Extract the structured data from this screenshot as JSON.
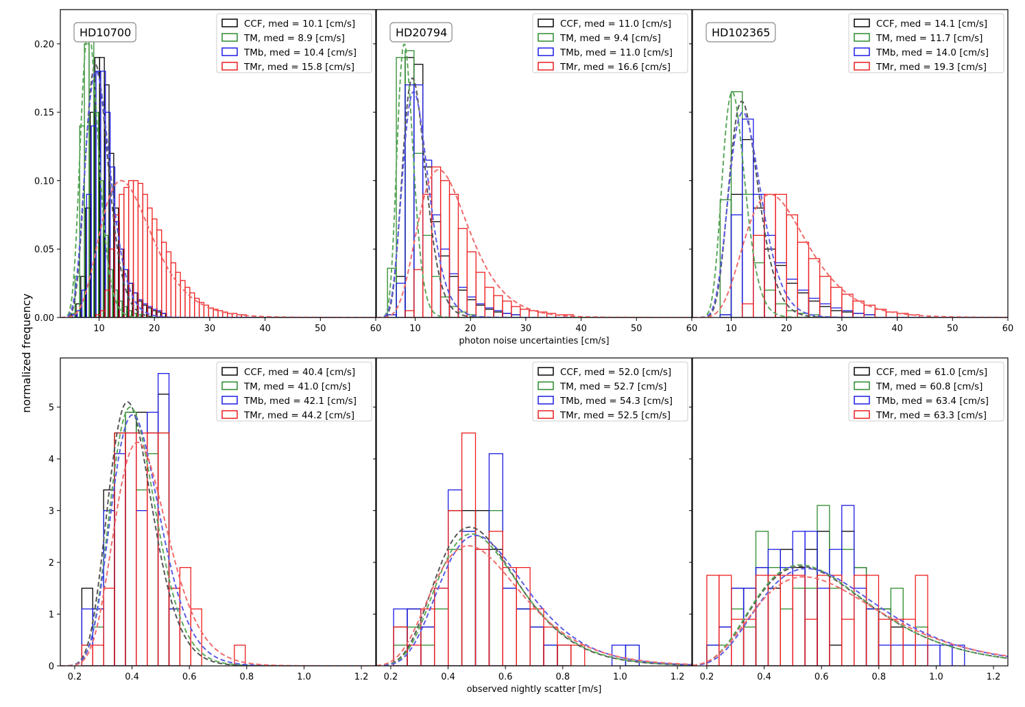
{
  "figure": {
    "ylabel": "normalized frequency"
  },
  "colors": {
    "CCF": "#000000",
    "TM": "#2a8a2a",
    "TMb": "#1a1ae6",
    "TMr": "#ee1c1c",
    "fit_CCF": "#555555",
    "fit_TM": "#5aa85a",
    "fit_TMb": "#5a5ae6",
    "fit_TMr": "#f06a6a"
  },
  "chart_data": [
    {
      "id": "top-left",
      "type": "histogram",
      "row": 0,
      "col": 0,
      "star": "HD10700",
      "xlabel": "",
      "xlim": [
        3,
        60
      ],
      "ylim": [
        0,
        0.225
      ],
      "xticks": [
        10,
        20,
        30,
        40,
        50,
        60
      ],
      "xtick_labels": [
        "10",
        "20",
        "30",
        "40",
        "50",
        "60"
      ],
      "yticks": [
        0,
        0.05,
        0.1,
        0.15,
        0.2
      ],
      "ytick_labels": [
        "0.00",
        "0.05",
        "0.10",
        "0.15",
        "0.20"
      ],
      "legend": [
        "CCF, med = 10.1 [cm/s]",
        "TM, med = 8.9 [cm/s]",
        "TMb, med = 10.4 [cm/s]",
        "TMr, med = 15.8 [cm/s]"
      ],
      "series": [
        {
          "name": "CCF",
          "bin_start": 5.0,
          "bin_width": 0.85,
          "values": [
            0.002,
            0.01,
            0.03,
            0.08,
            0.15,
            0.19,
            0.19,
            0.17,
            0.12,
            0.08,
            0.05,
            0.035,
            0.025,
            0.018,
            0.012,
            0.009,
            0.007,
            0.005,
            0.004,
            0.003
          ]
        },
        {
          "name": "TM",
          "bin_start": 4.8,
          "bin_width": 0.85,
          "values": [
            0.003,
            0.03,
            0.14,
            0.2,
            0.205,
            0.15,
            0.1,
            0.06,
            0.035,
            0.02,
            0.012,
            0.008,
            0.005,
            0.003,
            0.002
          ]
        },
        {
          "name": "TMb",
          "bin_start": 5.2,
          "bin_width": 0.85,
          "values": [
            0.002,
            0.005,
            0.02,
            0.09,
            0.14,
            0.18,
            0.18,
            0.15,
            0.11,
            0.07,
            0.05,
            0.035,
            0.025,
            0.018,
            0.013,
            0.01,
            0.008,
            0.006,
            0.005,
            0.003
          ]
        },
        {
          "name": "TMr",
          "bin_start": 9.4,
          "bin_width": 0.85,
          "values": [
            0.002,
            0.005,
            0.02,
            0.05,
            0.075,
            0.09,
            0.095,
            0.1,
            0.1,
            0.098,
            0.09,
            0.08,
            0.072,
            0.064,
            0.055,
            0.048,
            0.04,
            0.033,
            0.027,
            0.022,
            0.018,
            0.014,
            0.011,
            0.009,
            0.007,
            0.006,
            0.005,
            0.004,
            0.003,
            0.003,
            0.002,
            0.002
          ]
        }
      ],
      "fits": [
        {
          "name": "CCF",
          "type": "lognormal",
          "median": 9.8,
          "sigma": 0.22,
          "peak": 0.185
        },
        {
          "name": "TM",
          "type": "lognormal",
          "median": 8.4,
          "sigma": 0.2,
          "peak": 0.21
        },
        {
          "name": "TMb",
          "type": "lognormal",
          "median": 10.0,
          "sigma": 0.24,
          "peak": 0.18
        },
        {
          "name": "TMr",
          "type": "lognormal",
          "median": 15.6,
          "sigma": 0.33,
          "peak": 0.1
        }
      ]
    },
    {
      "id": "top-middle",
      "type": "histogram",
      "row": 0,
      "col": 1,
      "star": "HD20794",
      "xlabel": "photon noise uncertainties [cm/s]",
      "xlim": [
        3,
        60
      ],
      "ylim": [
        0,
        0.225
      ],
      "xticks": [
        10,
        20,
        30,
        40,
        50,
        60
      ],
      "xtick_labels": [
        "10",
        "20",
        "30",
        "40",
        "50",
        "60"
      ],
      "yticks": [
        0,
        0.05,
        0.1,
        0.15,
        0.2
      ],
      "ytick_labels": [
        "",
        "",
        "",
        "",
        ""
      ],
      "legend": [
        "CCF, med = 11.0 [cm/s]",
        "TM, med = 9.4 [cm/s]",
        "TMb, med = 11.0 [cm/s]",
        "TMr, med = 16.6 [cm/s]"
      ],
      "series": [
        {
          "name": "CCF",
          "bin_start": 5.0,
          "bin_width": 1.6,
          "values": [
            0.002,
            0.03,
            0.19,
            0.185,
            0.11,
            0.07,
            0.045,
            0.03,
            0.02,
            0.013,
            0.009,
            0.006,
            0.004,
            0.003,
            0.002
          ]
        },
        {
          "name": "TM",
          "bin_start": 5.0,
          "bin_width": 1.6,
          "values": [
            0.036,
            0.19,
            0.195,
            0.12,
            0.06,
            0.03,
            0.015,
            0.008,
            0.004,
            0.002
          ]
        },
        {
          "name": "TMb",
          "bin_start": 5.0,
          "bin_width": 1.6,
          "values": [
            0.002,
            0.025,
            0.17,
            0.17,
            0.115,
            0.075,
            0.05,
            0.032,
            0.022,
            0.015,
            0.01,
            0.007,
            0.005,
            0.003,
            0.002
          ]
        },
        {
          "name": "TMr",
          "bin_start": 8.2,
          "bin_width": 1.6,
          "values": [
            0.005,
            0.035,
            0.09,
            0.11,
            0.1,
            0.09,
            0.065,
            0.048,
            0.033,
            0.022,
            0.016,
            0.012,
            0.008,
            0.006,
            0.005,
            0.004,
            0.003,
            0.002,
            0.002
          ]
        }
      ],
      "fits": [
        {
          "name": "CCF",
          "type": "lognormal",
          "median": 10.0,
          "sigma": 0.22,
          "peak": 0.175
        },
        {
          "name": "TM",
          "type": "lognormal",
          "median": 8.3,
          "sigma": 0.18,
          "peak": 0.2
        },
        {
          "name": "TMb",
          "type": "lognormal",
          "median": 10.3,
          "sigma": 0.24,
          "peak": 0.165
        },
        {
          "name": "TMr",
          "type": "lognormal",
          "median": 15.8,
          "sigma": 0.32,
          "peak": 0.108
        }
      ]
    },
    {
      "id": "top-right",
      "type": "histogram",
      "row": 0,
      "col": 2,
      "star": "HD102365",
      "xlabel": "",
      "xlim": [
        3,
        60
      ],
      "ylim": [
        0,
        0.225
      ],
      "xticks": [
        10,
        20,
        30,
        40,
        50,
        60
      ],
      "xtick_labels": [
        "10",
        "20",
        "30",
        "40",
        "50",
        "60"
      ],
      "yticks": [
        0,
        0.05,
        0.1,
        0.15,
        0.2
      ],
      "ytick_labels": [
        "",
        "",
        "",
        "",
        ""
      ],
      "legend": [
        "CCF, med = 14.1 [cm/s]",
        "TM, med = 11.7 [cm/s]",
        "TMb, med = 14.0 [cm/s]",
        "TMr, med = 19.3 [cm/s]"
      ],
      "series": [
        {
          "name": "CCF",
          "bin_start": 8.0,
          "bin_width": 2.0,
          "values": [
            0.002,
            0.09,
            0.13,
            0.08,
            0.05,
            0.038,
            0.025,
            0.018,
            0.012,
            0.008,
            0.005,
            0.004,
            0.003,
            0.002
          ]
        },
        {
          "name": "TM",
          "bin_start": 8.0,
          "bin_width": 2.0,
          "values": [
            0.086,
            0.165,
            0.09,
            0.04,
            0.02,
            0.01,
            0.005,
            0.003,
            0.002
          ]
        },
        {
          "name": "TMb",
          "bin_start": 8.0,
          "bin_width": 2.0,
          "values": [
            0.002,
            0.075,
            0.145,
            0.09,
            0.06,
            0.04,
            0.028,
            0.02,
            0.014,
            0.01,
            0.007,
            0.005,
            0.003,
            0.002
          ]
        },
        {
          "name": "TMr",
          "bin_start": 12.0,
          "bin_width": 2.0,
          "values": [
            0.01,
            0.06,
            0.09,
            0.09,
            0.075,
            0.055,
            0.043,
            0.03,
            0.022,
            0.017,
            0.012,
            0.009,
            0.006,
            0.004,
            0.003,
            0.002
          ]
        }
      ],
      "fits": [
        {
          "name": "CCF",
          "type": "lognormal",
          "median": 12.5,
          "sigma": 0.22,
          "peak": 0.158
        },
        {
          "name": "TM",
          "type": "lognormal",
          "median": 10.6,
          "sigma": 0.2,
          "peak": 0.165
        },
        {
          "name": "TMb",
          "type": "lognormal",
          "median": 12.8,
          "sigma": 0.24,
          "peak": 0.15
        },
        {
          "name": "TMr",
          "type": "lognormal",
          "median": 19.0,
          "sigma": 0.33,
          "peak": 0.09
        }
      ]
    },
    {
      "id": "bottom-left",
      "type": "histogram",
      "row": 1,
      "col": 0,
      "star": "",
      "xlabel": "",
      "xlim": [
        0.15,
        1.25
      ],
      "ylim": [
        0,
        5.95
      ],
      "xticks": [
        0.2,
        0.4,
        0.6,
        0.8,
        1.0,
        1.2
      ],
      "xtick_labels": [
        "0.2",
        "0.4",
        "0.6",
        "0.8",
        "1.0",
        "1.2"
      ],
      "yticks": [
        0,
        1,
        2,
        3,
        4,
        5
      ],
      "ytick_labels": [
        "0",
        "1",
        "2",
        "3",
        "4",
        "5"
      ],
      "legend": [
        "CCF, med = 40.4 [cm/s]",
        "TM, med = 41.0 [cm/s]",
        "TMb, med = 42.1 [cm/s]",
        "TMr, med = 44.2 [cm/s]"
      ],
      "series": [
        {
          "name": "CCF",
          "bin_start": 0.225,
          "bin_width": 0.038,
          "values": [
            1.5,
            1.1,
            3.4,
            4.5,
            4.9,
            4.9,
            4.5,
            5.25,
            1.5
          ]
        },
        {
          "name": "TM",
          "bin_start": 0.225,
          "bin_width": 0.038,
          "values": [
            0.4,
            0.75,
            3.0,
            4.5,
            4.9,
            3.4,
            4.1,
            4.5,
            1.1
          ]
        },
        {
          "name": "TMb",
          "bin_start": 0.225,
          "bin_width": 0.038,
          "values": [
            1.1,
            1.1,
            3.0,
            4.1,
            4.5,
            3.0,
            4.9,
            5.65,
            1.1
          ]
        },
        {
          "name": "TMr",
          "bin_start": 0.225,
          "bin_width": 0.038,
          "values": [
            0.4,
            0.4,
            1.5,
            4.5,
            4.5,
            4.5,
            4.5,
            4.5,
            1.5,
            1.9,
            1.1,
            0,
            0,
            0,
            0.4
          ]
        }
      ],
      "fits": [
        {
          "name": "CCF",
          "type": "lognormal",
          "median": 0.4,
          "sigma": 0.2,
          "peak": 5.1
        },
        {
          "name": "TM",
          "type": "lognormal",
          "median": 0.41,
          "sigma": 0.2,
          "peak": 5.0
        },
        {
          "name": "TMb",
          "type": "lognormal",
          "median": 0.42,
          "sigma": 0.21,
          "peak": 4.85
        },
        {
          "name": "TMr",
          "type": "lognormal",
          "median": 0.44,
          "sigma": 0.22,
          "peak": 4.32
        }
      ]
    },
    {
      "id": "bottom-middle",
      "type": "histogram",
      "row": 1,
      "col": 1,
      "star": "",
      "xlabel": "observed nightly scatter [m/s]",
      "xlim": [
        0.15,
        1.25
      ],
      "ylim": [
        0,
        5.95
      ],
      "xticks": [
        0.2,
        0.4,
        0.6,
        0.8,
        1.0,
        1.2
      ],
      "xtick_labels": [
        "0.2",
        "0.4",
        "0.6",
        "0.8",
        "1.0",
        "1.2"
      ],
      "yticks": [
        0,
        1,
        2,
        3,
        4,
        5
      ],
      "ytick_labels": [
        "",
        "",
        "",
        "",
        "",
        ""
      ],
      "legend": [
        "CCF, med = 52.0 [cm/s]",
        "TM, med = 52.7 [cm/s]",
        "TMb, med = 54.3 [cm/s]",
        "TMr, med = 52.5 [cm/s]"
      ],
      "series": [
        {
          "name": "CCF",
          "bin_start": 0.21,
          "bin_width": 0.0476,
          "values": [
            0.75,
            1.1,
            0.75,
            1.5,
            3.0,
            3.0,
            3.0,
            2.25,
            1.5,
            1.1,
            0.75,
            0.4,
            0.4
          ]
        },
        {
          "name": "TM",
          "bin_start": 0.21,
          "bin_width": 0.0476,
          "values": [
            0.4,
            0.75,
            0.4,
            1.1,
            2.25,
            2.6,
            2.25,
            3.0,
            1.5,
            1.1,
            0.75,
            0.4,
            0.4,
            0,
            0,
            0,
            0,
            0.4
          ]
        },
        {
          "name": "TMb",
          "bin_start": 0.21,
          "bin_width": 0.0476,
          "values": [
            1.1,
            1.1,
            0.75,
            1.5,
            3.4,
            2.6,
            2.25,
            4.1,
            1.5,
            1.1,
            0.75,
            0.4,
            0.4,
            0,
            0,
            0,
            0.4,
            0.4
          ]
        },
        {
          "name": "TMr",
          "bin_start": 0.21,
          "bin_width": 0.0476,
          "values": [
            0.75,
            0.4,
            1.1,
            1.5,
            3.0,
            4.5,
            2.25,
            2.6,
            1.9,
            1.9,
            1.1,
            0.75,
            0.4,
            0.4
          ]
        }
      ],
      "fits": [
        {
          "name": "CCF",
          "type": "lognormal",
          "median": 0.52,
          "sigma": 0.3,
          "peak": 2.68
        },
        {
          "name": "TM",
          "type": "lognormal",
          "median": 0.527,
          "sigma": 0.3,
          "peak": 2.55
        },
        {
          "name": "TMb",
          "type": "lognormal",
          "median": 0.543,
          "sigma": 0.3,
          "peak": 2.52
        },
        {
          "name": "TMr",
          "type": "lognormal",
          "median": 0.525,
          "sigma": 0.33,
          "peak": 2.32
        }
      ]
    },
    {
      "id": "bottom-right",
      "type": "histogram",
      "row": 1,
      "col": 2,
      "star": "",
      "xlabel": "",
      "xlim": [
        0.15,
        1.25
      ],
      "ylim": [
        0,
        5.95
      ],
      "xticks": [
        0.2,
        0.4,
        0.6,
        0.8,
        1.0,
        1.2
      ],
      "xtick_labels": [
        "0.2",
        "0.4",
        "0.6",
        "0.8",
        "1.0",
        "1.2"
      ],
      "yticks": [
        0,
        1,
        2,
        3,
        4,
        5
      ],
      "ytick_labels": [
        "",
        "",
        "",
        "",
        "",
        ""
      ],
      "legend": [
        "CCF, med = 61.0 [cm/s]",
        "TM, med = 60.8 [cm/s]",
        "TMb, med = 63.4 [cm/s]",
        "TMr, med = 63.3 [cm/s]"
      ],
      "series": [
        {
          "name": "CCF",
          "bin_start": 0.2,
          "bin_width": 0.0428,
          "values": [
            0.4,
            0.75,
            1.5,
            1.5,
            1.9,
            1.5,
            2.25,
            1.9,
            2.25,
            2.6,
            0.4,
            2.6,
            1.9,
            1.1,
            1.1,
            0.75,
            0.4
          ]
        },
        {
          "name": "TM",
          "bin_start": 0.2,
          "bin_width": 0.0428,
          "values": [
            0.4,
            0.4,
            1.1,
            0.75,
            2.6,
            1.9,
            1.1,
            1.5,
            1.5,
            3.1,
            1.5,
            2.25,
            1.9,
            1.1,
            1.1,
            1.5,
            0.4,
            0.75
          ]
        },
        {
          "name": "TMb",
          "bin_start": 0.2,
          "bin_width": 0.0428,
          "values": [
            0.4,
            0.75,
            1.5,
            1.5,
            1.9,
            2.25,
            1.9,
            2.6,
            2.6,
            1.5,
            2.25,
            3.1,
            1.5,
            1.1,
            0.4,
            0.4,
            0.4,
            0.4,
            0.4,
            0.4,
            0.4
          ]
        },
        {
          "name": "TMr",
          "bin_start": 0.2,
          "bin_width": 0.0428,
          "values": [
            1.75,
            1.75,
            0.9,
            0.9,
            1.75,
            1.75,
            1.75,
            1.75,
            0.9,
            1.75,
            1.75,
            0.9,
            1.75,
            1.75,
            0.9,
            0.9,
            0.9,
            1.75
          ]
        }
      ],
      "fits": [
        {
          "name": "CCF",
          "type": "lognormal",
          "median": 0.61,
          "sigma": 0.38,
          "peak": 1.92
        },
        {
          "name": "TM",
          "type": "lognormal",
          "median": 0.608,
          "sigma": 0.38,
          "peak": 1.95
        },
        {
          "name": "TMb",
          "type": "lognormal",
          "median": 0.634,
          "sigma": 0.38,
          "peak": 1.88
        },
        {
          "name": "TMr",
          "type": "lognormal",
          "median": 0.633,
          "sigma": 0.4,
          "peak": 1.72
        }
      ]
    }
  ]
}
